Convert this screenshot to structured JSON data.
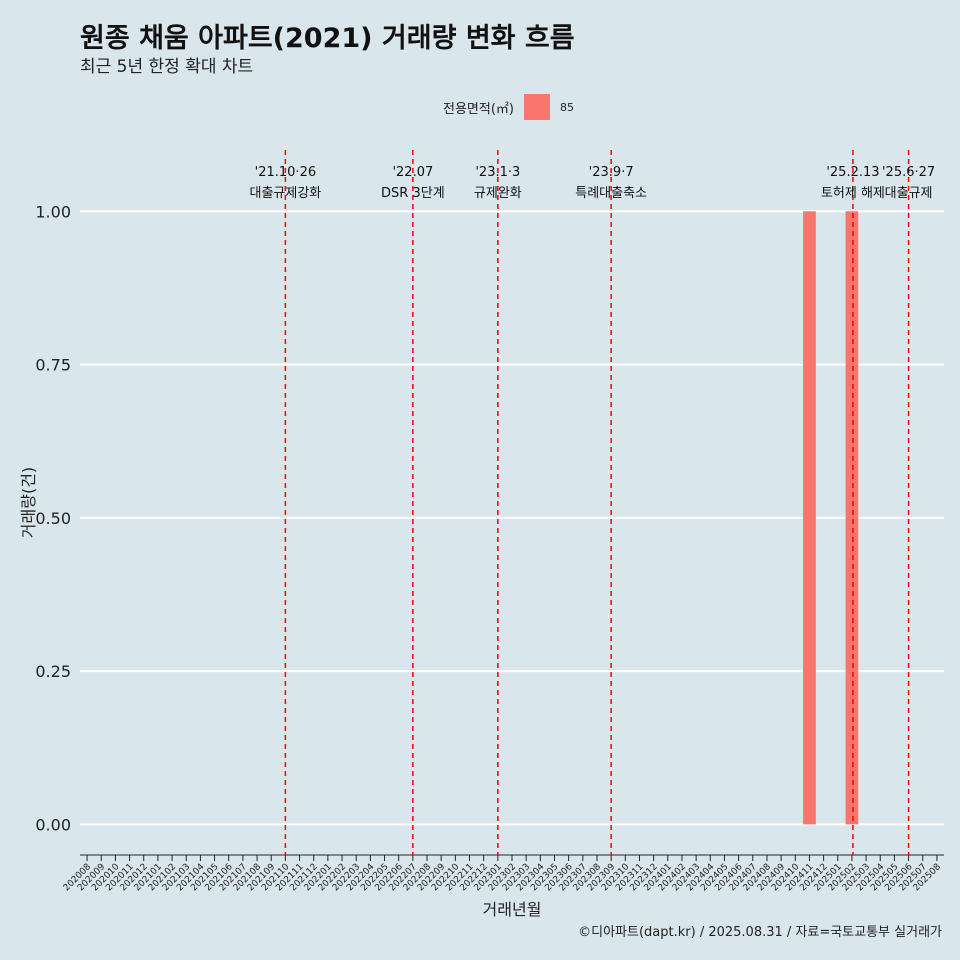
{
  "title": "원종 채움 아파트(2021) 거래량 변화 흐름",
  "subtitle": "최근 5년 한정 확대 차트",
  "caption": "©디아파트(dapt.kr) / 2025.08.31 / 자료=국토교통부 실거래가",
  "colors": {
    "background": "#d9e6ec",
    "bar": "#f8766d",
    "vline": "#ff0000",
    "grid": "#ffffff"
  },
  "chart_data": {
    "type": "bar",
    "xlabel": "거래년월",
    "ylabel": "거래량(건)",
    "ylim": [
      -0.05,
      1.1
    ],
    "y_ticks": [
      0.0,
      0.25,
      0.5,
      0.75,
      1.0
    ],
    "y_tick_labels": [
      "0.00",
      "0.25",
      "0.50",
      "0.75",
      "1.00"
    ],
    "legend": {
      "title": "전용면적(㎡)",
      "position": "top",
      "entries": [
        {
          "label": "85",
          "color": "#f8766d"
        }
      ]
    },
    "categories": [
      "202008",
      "202009",
      "202010",
      "202011",
      "202012",
      "202101",
      "202102",
      "202103",
      "202104",
      "202105",
      "202106",
      "202107",
      "202108",
      "202109",
      "202110",
      "202111",
      "202112",
      "202201",
      "202202",
      "202203",
      "202204",
      "202205",
      "202206",
      "202207",
      "202208",
      "202209",
      "202210",
      "202211",
      "202212",
      "202301",
      "202302",
      "202303",
      "202304",
      "202305",
      "202306",
      "202307",
      "202308",
      "202309",
      "202310",
      "202311",
      "202312",
      "202401",
      "202402",
      "202403",
      "202404",
      "202405",
      "202406",
      "202407",
      "202408",
      "202409",
      "202410",
      "202411",
      "202412",
      "202501",
      "202502",
      "202503",
      "202504",
      "202505",
      "202506",
      "202507",
      "202508"
    ],
    "series": [
      {
        "name": "85",
        "points": [
          {
            "x": "202411",
            "y": 1
          },
          {
            "x": "202502",
            "y": 1
          }
        ]
      }
    ],
    "annotations": [
      {
        "x": "202110",
        "line1": "'21.10·26",
        "line2": "대출규제강화"
      },
      {
        "x": "202207",
        "line1": "'22.07",
        "line2": "DSR 3단계"
      },
      {
        "x": "202301",
        "line1": "'23.1·3",
        "line2": "규제완화"
      },
      {
        "x": "202309",
        "line1": "'23.9·7",
        "line2": "특례대출축소"
      },
      {
        "x": "202502",
        "x_offset": 1,
        "line1": "'25.2.13",
        "line2": "토허제 해제"
      },
      {
        "x": "202506",
        "line1": "'25.6·27",
        "line2": "대출규제"
      }
    ]
  }
}
